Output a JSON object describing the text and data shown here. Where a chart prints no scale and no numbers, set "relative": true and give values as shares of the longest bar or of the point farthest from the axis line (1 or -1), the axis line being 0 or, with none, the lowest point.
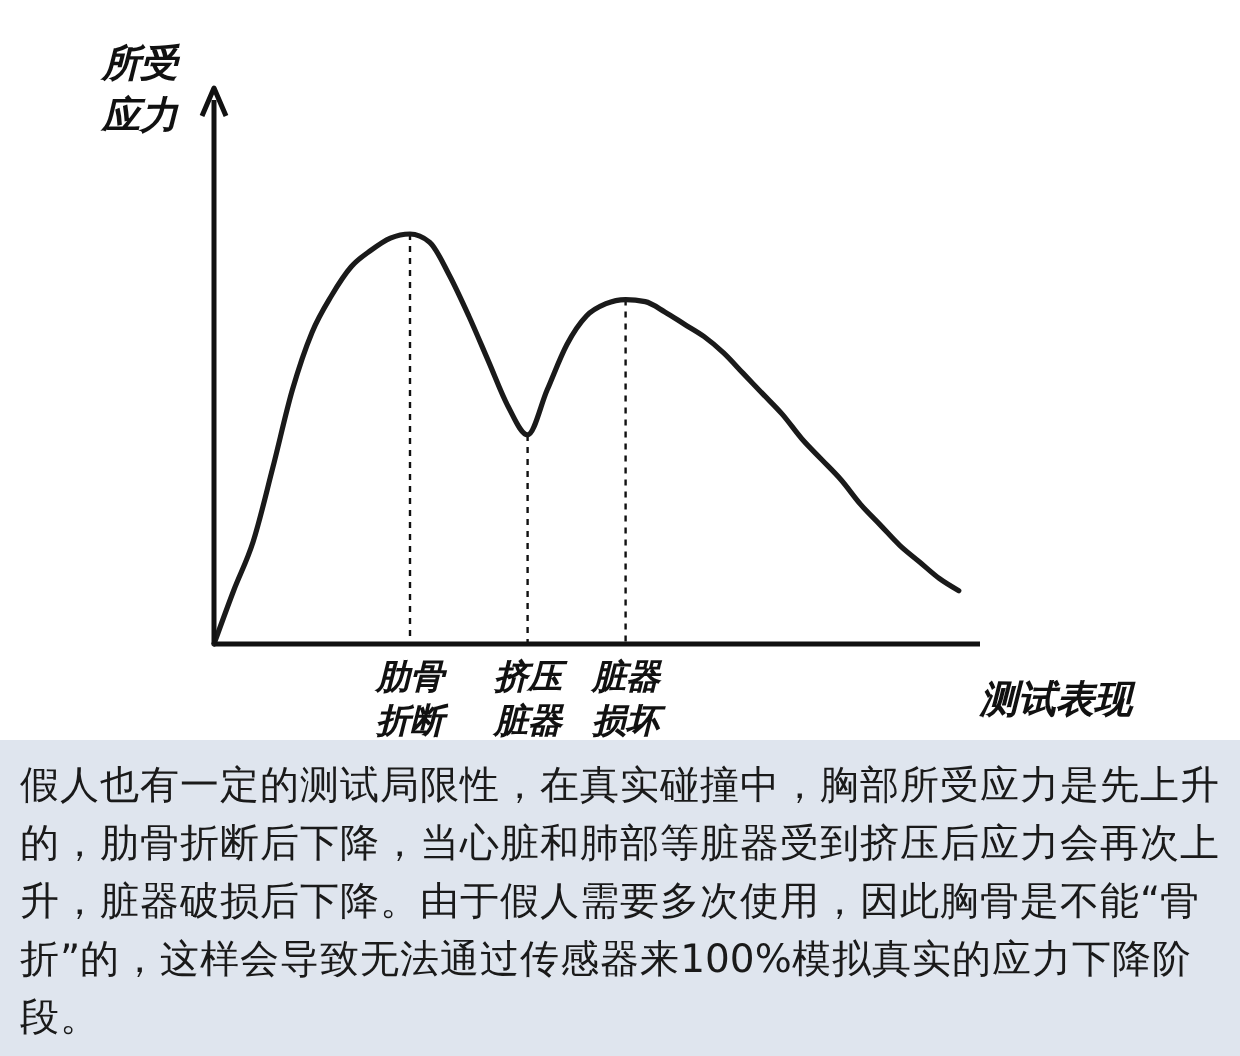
{
  "chart_data": {
    "type": "line",
    "relative": true,
    "xlabel": "测试表现",
    "ylabel": "所受应力",
    "categories": [
      null,
      null,
      null,
      null,
      null,
      null,
      null,
      null,
      null,
      null,
      "肋骨折断",
      null,
      null,
      null,
      null,
      null,
      "挤压脏器",
      null,
      null,
      null,
      null,
      "脏器损坏",
      null,
      null,
      null,
      null,
      null,
      null,
      null,
      null,
      null,
      null,
      null,
      null,
      null,
      null,
      null,
      null,
      null
    ],
    "series": [
      {
        "color": "#1a1a1a",
        "values": [
          0,
          0.13,
          0.25,
          0.43,
          0.62,
          0.76,
          0.85,
          0.92,
          0.96,
          0.99,
          1,
          0.98,
          0.9,
          0.8,
          0.69,
          0.58,
          0.51,
          0.62,
          0.73,
          0.8,
          0.83,
          0.84,
          0.835,
          0.81,
          0.78,
          0.75,
          0.71,
          0.66,
          0.61,
          0.56,
          0.5,
          0.45,
          0.4,
          0.34,
          0.29,
          0.24,
          0.2,
          0.16,
          0.13
        ]
      }
    ],
    "annotations": [
      "假人也有一定的测试局限性，在真实碰撞中，胸部所受应力是先上升的，肋骨折断后下降，当心脏和肺部等脏器受到挤压后应力会再次上升，脏器破损后下降。由于假人需要多次使用，因此胸骨是不能“骨折”的，这样会导致无法通过传感器来100%模拟真实的应力下降阶段。"
    ]
  }
}
